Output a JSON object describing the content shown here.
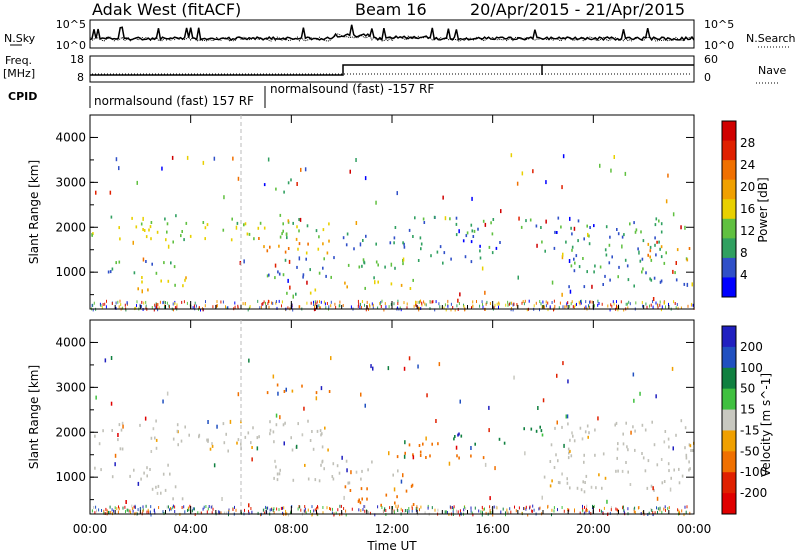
{
  "header": {
    "station": "Adak West (fitACF)",
    "beam": "Beam 16",
    "dates": "20/Apr/2015 - 21/Apr/2015"
  },
  "panels": {
    "noise": {
      "left_label": "N.Sky",
      "right_label": "N.Search",
      "left_ticks": [
        "10^5",
        "10^0"
      ],
      "right_ticks": [
        "10^5",
        "10^0"
      ]
    },
    "freq": {
      "left_label_line1": "Freq.",
      "left_label_line2": "[MHz]",
      "right_label": "Nave",
      "left_ticks": [
        "18",
        "8"
      ],
      "right_ticks": [
        "60",
        "0"
      ]
    },
    "cpid": {
      "label": "CPID",
      "annotations": [
        "normalsound (fast) 157 RF",
        "normalsound (fast) -157 RF"
      ]
    }
  },
  "colors": {
    "power_scale": [
      "#0000ff",
      "#3050c8",
      "#30a060",
      "#60c040",
      "#e8d000",
      "#f0a000",
      "#f07000",
      "#e02000",
      "#d00000"
    ],
    "velocity_scale": [
      "#2020c0",
      "#2050c0",
      "#108040",
      "#40c040",
      "#c8c8c0",
      "#f0a000",
      "#f07000",
      "#e02000",
      "#e00000"
    ],
    "ground_scatter": "#c0c0b8"
  },
  "chart_data": [
    {
      "type": "heatmap",
      "title": "",
      "xlabel": "Time UT",
      "ylabel": "Slant Range [km]",
      "x_ticks": [
        "00:00",
        "04:00",
        "08:00",
        "12:00",
        "16:00",
        "20:00",
        "00:00"
      ],
      "y_ticks": [
        "1000",
        "2000",
        "3000",
        "4000"
      ],
      "xlim": [
        0,
        24
      ],
      "ylim": [
        180,
        4500
      ],
      "colorbar": {
        "label": "Power [dB]",
        "ticks": [
          "4",
          "8",
          "12",
          "16",
          "20",
          "24",
          "28"
        ],
        "range": [
          0,
          30
        ]
      },
      "regions": [
        {
          "t": [
            0.0,
            9.5
          ],
          "r": [
            1700,
            2300
          ],
          "level": 12
        },
        {
          "t": [
            5.5,
            9.5
          ],
          "r": [
            1450,
            1800
          ],
          "level": 20
        },
        {
          "t": [
            0.0,
            3.5
          ],
          "r": [
            1000,
            1300
          ],
          "level": 8
        },
        {
          "t": [
            1.8,
            3.8
          ],
          "r": [
            550,
            1000
          ],
          "level": 16
        },
        {
          "t": [
            7.0,
            12.5
          ],
          "r": [
            900,
            1400
          ],
          "level": 8
        },
        {
          "t": [
            10.0,
            13.0
          ],
          "r": [
            650,
            900
          ],
          "level": 14
        },
        {
          "t": [
            10.0,
            16.5
          ],
          "r": [
            1500,
            1900
          ],
          "level": 6
        },
        {
          "t": [
            12.0,
            16.0
          ],
          "r": [
            1900,
            2300
          ],
          "level": 8
        },
        {
          "t": [
            13.0,
            16.0
          ],
          "r": [
            1200,
            1500
          ],
          "level": 6
        },
        {
          "t": [
            17.0,
            18.0
          ],
          "r": [
            1700,
            2200
          ],
          "level": 8
        },
        {
          "t": [
            18.0,
            23.0
          ],
          "r": [
            1500,
            2300
          ],
          "level": 6
        },
        {
          "t": [
            19.0,
            24.0
          ],
          "r": [
            700,
            1500
          ],
          "level": 7
        },
        {
          "t": [
            22.0,
            24.0
          ],
          "r": [
            1300,
            1700
          ],
          "level": 22
        },
        {
          "t": [
            6.5,
            8.0
          ],
          "r": [
            2800,
            3100
          ],
          "level": 6
        },
        {
          "t": [
            7.5,
            9.5
          ],
          "r": [
            450,
            650
          ],
          "level": 10
        },
        {
          "t": [
            7.5,
            9.5
          ],
          "r": [
            200,
            300
          ],
          "level": 26
        }
      ]
    },
    {
      "type": "heatmap",
      "title": "",
      "xlabel": "Time UT",
      "ylabel": "Slant Range [km]",
      "x_ticks": [
        "00:00",
        "04:00",
        "08:00",
        "12:00",
        "16:00",
        "20:00",
        "00:00"
      ],
      "y_ticks": [
        "1000",
        "2000",
        "3000",
        "4000"
      ],
      "xlim": [
        0,
        24
      ],
      "ylim": [
        180,
        4500
      ],
      "colorbar": {
        "label": "Velocity [m s^-1]",
        "ticks": [
          "200",
          "100",
          "50",
          "15",
          "-15",
          "-50",
          "-100",
          "-200"
        ],
        "range": [
          -250,
          250
        ]
      },
      "regions": [
        {
          "t": [
            0.0,
            9.5
          ],
          "r": [
            1600,
            2300
          ],
          "v": 0
        },
        {
          "t": [
            0.0,
            3.5
          ],
          "r": [
            1000,
            1300
          ],
          "v": 0
        },
        {
          "t": [
            1.8,
            3.8
          ],
          "r": [
            550,
            1000
          ],
          "v": 0
        },
        {
          "t": [
            7.0,
            12.5
          ],
          "r": [
            900,
            1400
          ],
          "v": 0
        },
        {
          "t": [
            10.0,
            13.0
          ],
          "r": [
            400,
            900
          ],
          "v": -60
        },
        {
          "t": [
            12.0,
            16.0
          ],
          "r": [
            1450,
            1800
          ],
          "v": -60
        },
        {
          "t": [
            14.0,
            16.5
          ],
          "r": [
            1750,
            1950
          ],
          "v": 40
        },
        {
          "t": [
            14.5,
            15.5
          ],
          "r": [
            1950,
            2100
          ],
          "v": 200
        },
        {
          "t": [
            17.0,
            18.0
          ],
          "r": [
            1700,
            2200
          ],
          "v": 40
        },
        {
          "t": [
            18.0,
            24.0
          ],
          "r": [
            700,
            2300
          ],
          "v": 0
        },
        {
          "t": [
            6.5,
            9.5
          ],
          "r": [
            2900,
            3100
          ],
          "v": -40
        }
      ]
    }
  ]
}
